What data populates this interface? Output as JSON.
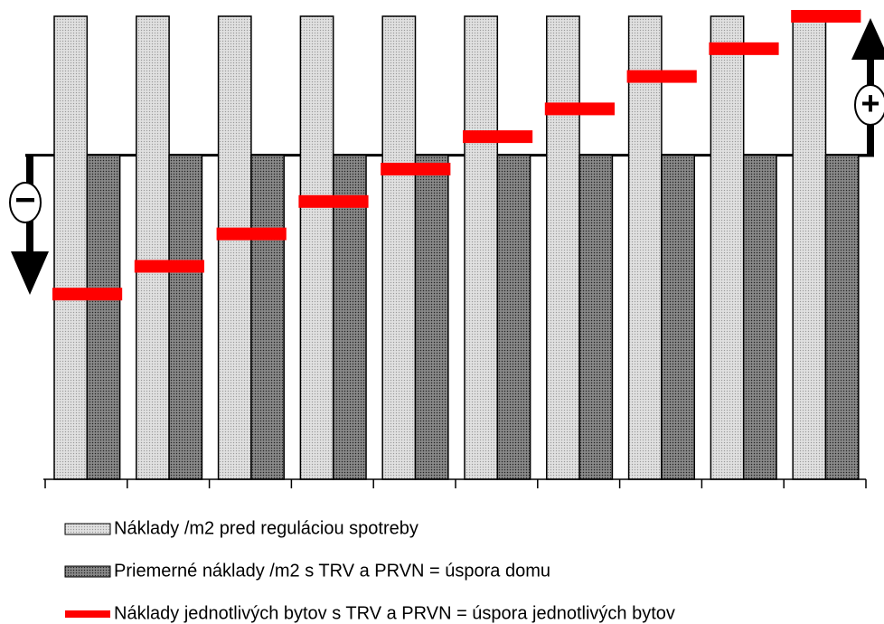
{
  "chart_data": {
    "type": "bar",
    "categories": [
      null,
      null,
      null,
      null,
      null,
      null,
      null,
      null,
      null,
      null
    ],
    "series": [
      {
        "name": "Náklady /m2 pred reguláciou spotreby",
        "kind": "bar",
        "color": "#d9d9d9",
        "values": [
          100,
          100,
          100,
          100,
          100,
          100,
          100,
          100,
          100,
          100
        ]
      },
      {
        "name": "Priemerné náklady /m2 s TRV a PRVN = úspora domu",
        "kind": "bar",
        "color": "#7a7a7a",
        "values": [
          70,
          70,
          70,
          70,
          70,
          70,
          70,
          70,
          70,
          70
        ]
      },
      {
        "name": "Náklady jednotlivých bytov s TRV a PRVN = úspora jednotlivých bytov",
        "kind": "level",
        "color": "#ff0000",
        "values": [
          40,
          46,
          53,
          60,
          67,
          74,
          80,
          87,
          93,
          100
        ]
      }
    ],
    "annotations": [
      "−",
      "+"
    ],
    "ylim": [
      0,
      100
    ]
  }
}
